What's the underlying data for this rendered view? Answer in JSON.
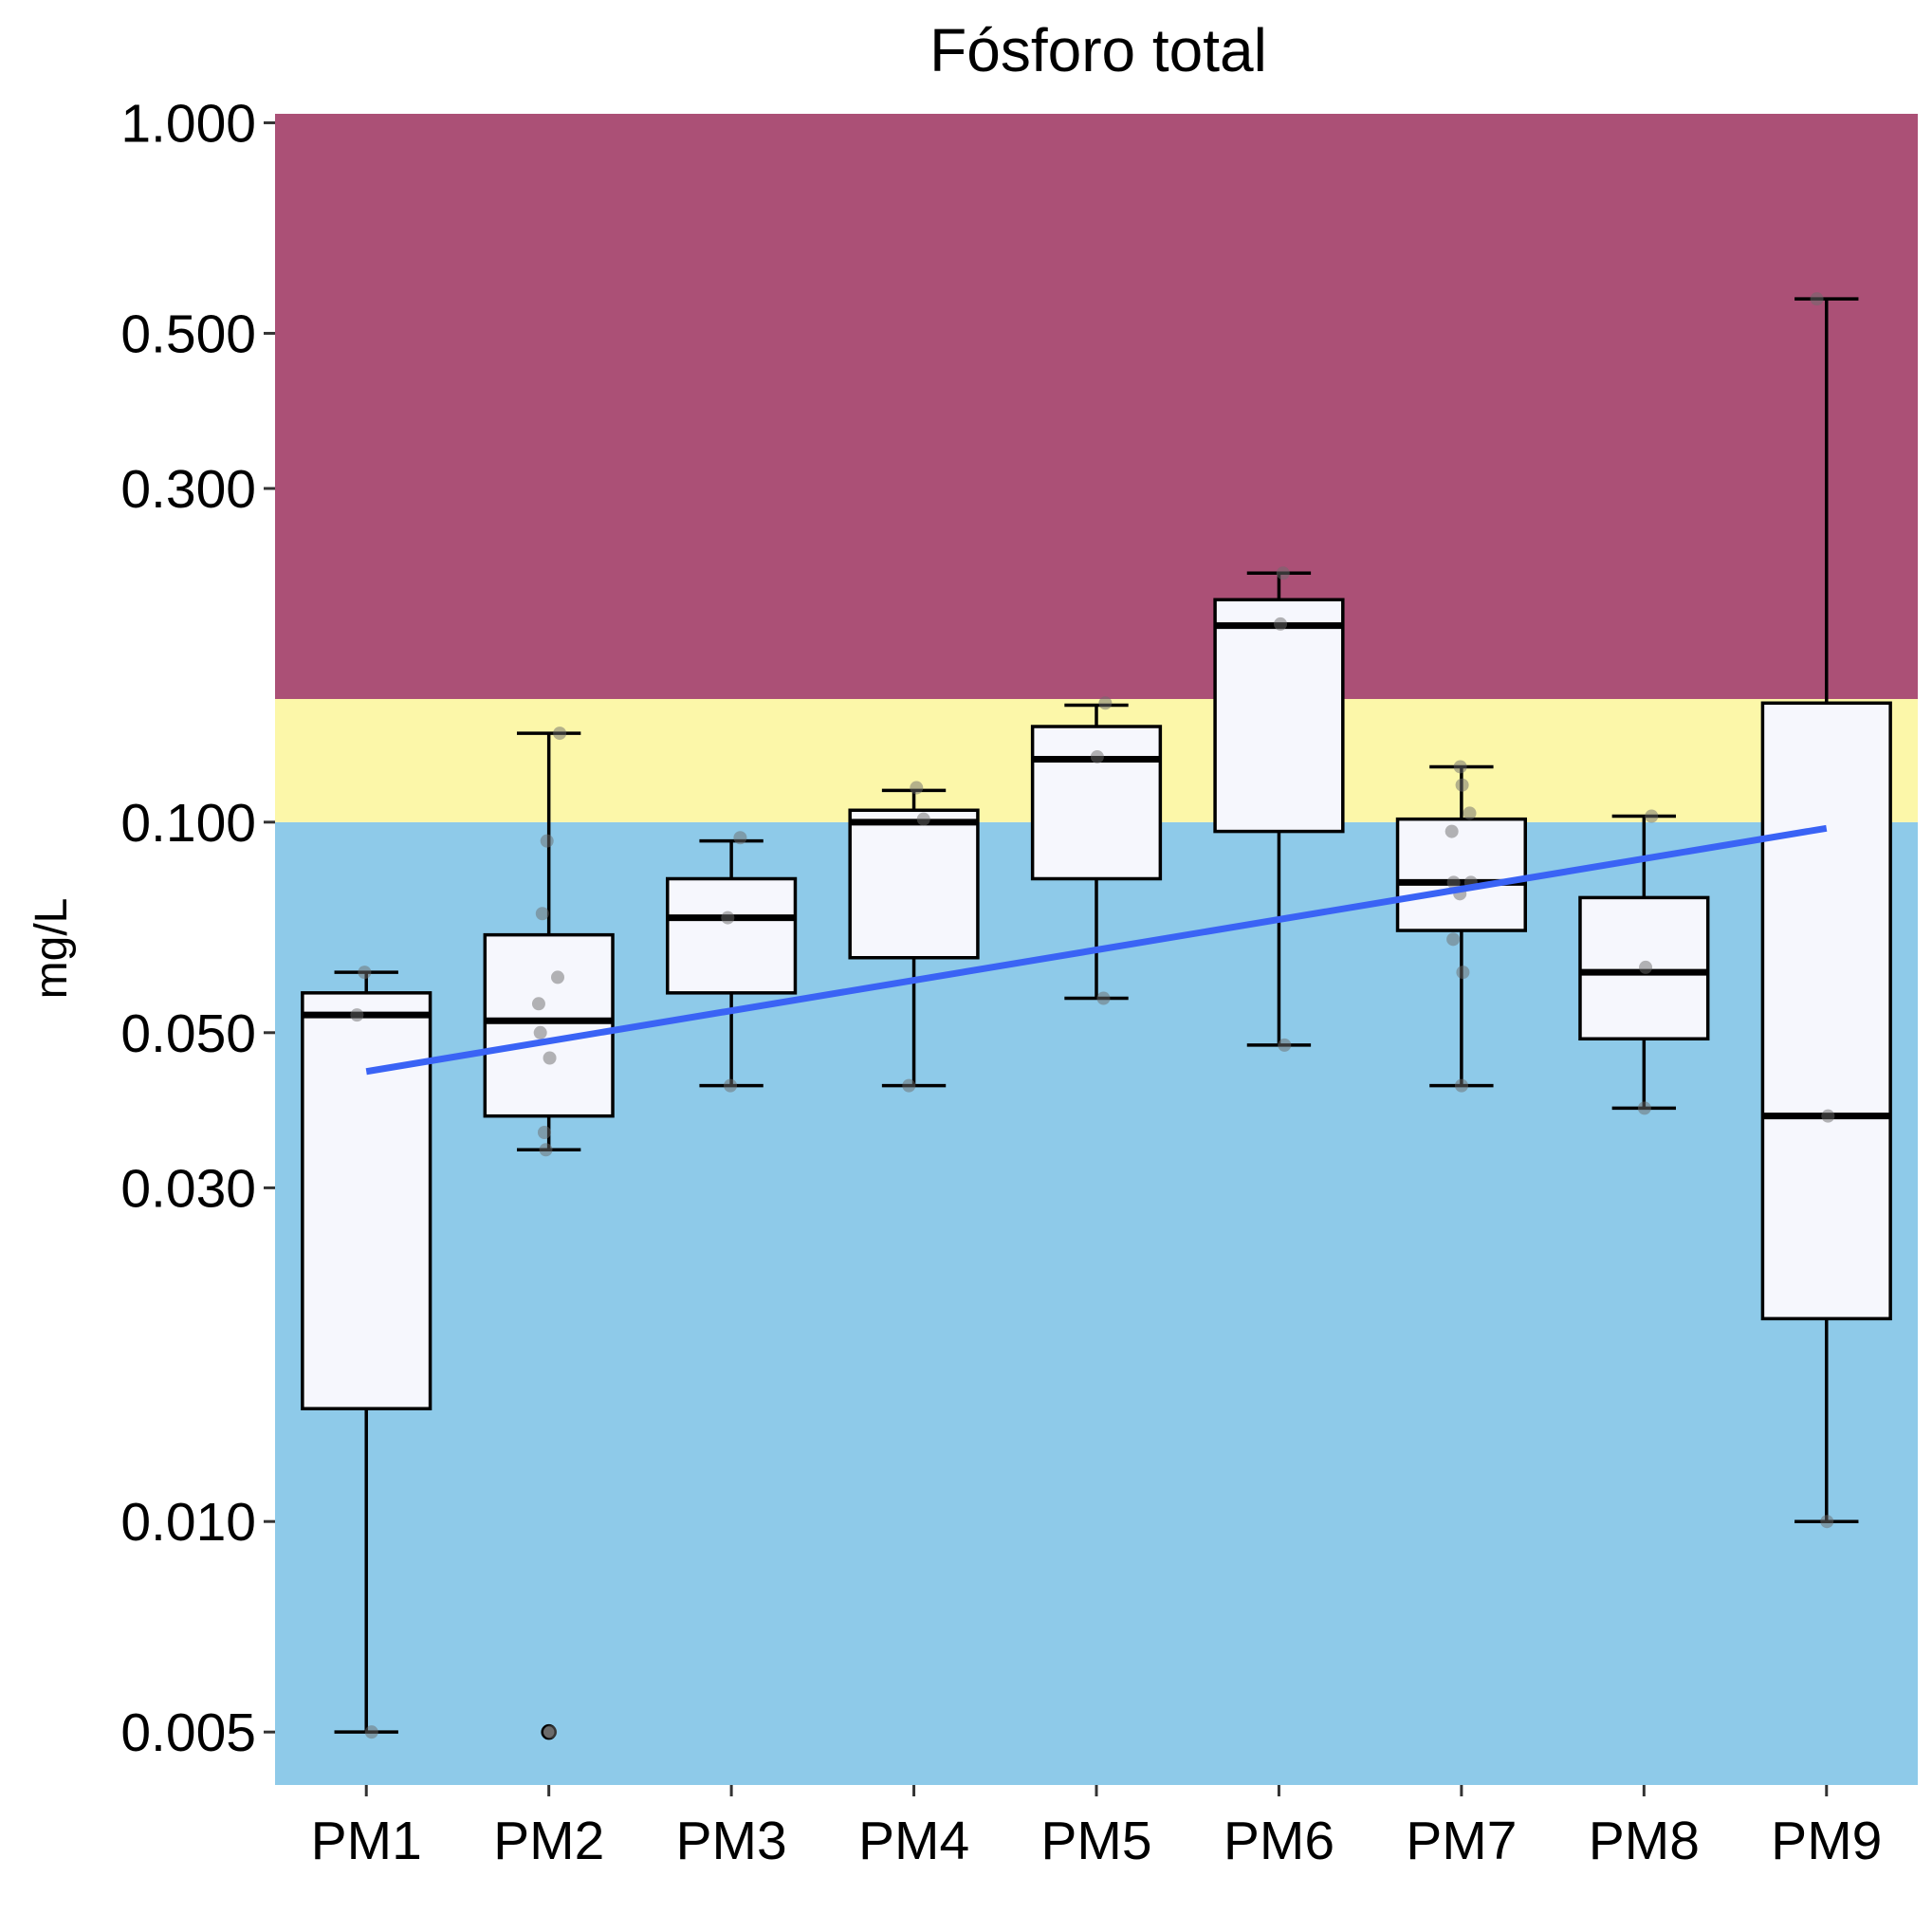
{
  "chart_data": {
    "type": "box",
    "title": "Fósforo total",
    "ylabel": "mg/L",
    "xlabel": "",
    "yscale": "log10",
    "ylim": [
      0.0042,
      1.03
    ],
    "yticks": [
      {
        "value": 1.0,
        "label": "1.000"
      },
      {
        "value": 0.5,
        "label": "0.500"
      },
      {
        "value": 0.3,
        "label": "0.300"
      },
      {
        "value": 0.1,
        "label": "0.100"
      },
      {
        "value": 0.05,
        "label": "0.050"
      },
      {
        "value": 0.03,
        "label": "0.030"
      },
      {
        "value": 0.01,
        "label": "0.010"
      },
      {
        "value": 0.005,
        "label": "0.005"
      }
    ],
    "grid": false,
    "bands": [
      {
        "from": 0.0042,
        "to": 0.1,
        "color": "#8ecae9"
      },
      {
        "from": 0.1,
        "to": 0.15,
        "color": "#fcf7a9"
      },
      {
        "from": 0.15,
        "to": 1.03,
        "color": "#ab5076"
      }
    ],
    "categories": [
      "PM1",
      "PM2",
      "PM3",
      "PM4",
      "PM5",
      "PM6",
      "PM7",
      "PM8",
      "PM9"
    ],
    "boxes": [
      {
        "category": "PM1",
        "whisker_low": 0.005,
        "q1": 0.0145,
        "median": 0.053,
        "q3": 0.057,
        "whisker_high": 0.061,
        "outliers": [],
        "points": [
          0.005,
          0.053,
          0.061
        ]
      },
      {
        "category": "PM2",
        "whisker_low": 0.034,
        "q1": 0.038,
        "median": 0.052,
        "q3": 0.069,
        "whisker_high": 0.134,
        "outliers": [
          0.005
        ],
        "points": [
          0.005,
          0.034,
          0.036,
          0.046,
          0.05,
          0.055,
          0.06,
          0.074,
          0.094,
          0.134
        ]
      },
      {
        "category": "PM3",
        "whisker_low": 0.042,
        "q1": 0.057,
        "median": 0.073,
        "q3": 0.083,
        "whisker_high": 0.094,
        "outliers": [],
        "points": [
          0.042,
          0.073,
          0.095
        ]
      },
      {
        "category": "PM4",
        "whisker_low": 0.042,
        "q1": 0.064,
        "median": 0.1,
        "q3": 0.104,
        "whisker_high": 0.111,
        "outliers": [],
        "points": [
          0.042,
          0.101,
          0.112
        ]
      },
      {
        "category": "PM5",
        "whisker_low": 0.056,
        "q1": 0.083,
        "median": 0.123,
        "q3": 0.137,
        "whisker_high": 0.147,
        "outliers": [],
        "points": [
          0.056,
          0.124,
          0.148
        ]
      },
      {
        "category": "PM6",
        "whisker_low": 0.048,
        "q1": 0.097,
        "median": 0.191,
        "q3": 0.208,
        "whisker_high": 0.227,
        "outliers": [],
        "points": [
          0.048,
          0.192,
          0.227
        ]
      },
      {
        "category": "PM7",
        "whisker_low": 0.042,
        "q1": 0.07,
        "median": 0.082,
        "q3": 0.101,
        "whisker_high": 0.12,
        "outliers": [],
        "points": [
          0.042,
          0.061,
          0.068,
          0.079,
          0.082,
          0.082,
          0.097,
          0.103,
          0.113,
          0.12
        ]
      },
      {
        "category": "PM8",
        "whisker_low": 0.039,
        "q1": 0.049,
        "median": 0.061,
        "q3": 0.078,
        "whisker_high": 0.102,
        "outliers": [],
        "points": [
          0.039,
          0.062,
          0.102
        ]
      },
      {
        "category": "PM9",
        "whisker_low": 0.01,
        "q1": 0.0195,
        "median": 0.038,
        "q3": 0.148,
        "whisker_high": 0.56,
        "outliers": [],
        "points": [
          0.01,
          0.038,
          0.56
        ]
      }
    ],
    "trend_line": {
      "color": "#3a63f5",
      "from": {
        "category": "PM1",
        "value": 0.044
      },
      "to": {
        "category": "PM9",
        "value": 0.098
      }
    },
    "box_fill": "#f6f7fd",
    "box_stroke": "#000000",
    "point_color": "#6b6b6b"
  }
}
